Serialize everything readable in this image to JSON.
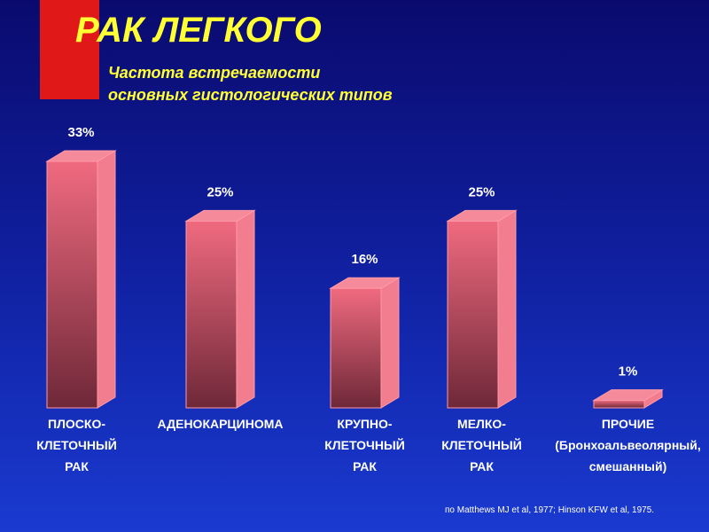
{
  "chart_data": {
    "type": "bar3d",
    "title": "РАК ЛЕГКОГО",
    "subtitle": [
      "Частота встречаемости",
      "основных гистологических типов"
    ],
    "categories": [
      "ПЛОСКО-\nКЛЕТОЧНЫЙ\nРАК",
      "АДЕНОКАРЦИНОМА",
      "КРУПНО-\nКЛЕТОЧНЫЙ\nРАК",
      "МЕЛКО-\nКЛЕТОЧНЫЙ\nРАК",
      "ПРОЧИЕ\n(Бронхоальвеолярный,\nсмешанный)"
    ],
    "values": [
      33,
      25,
      16,
      25,
      1
    ],
    "value_labels": [
      "33%",
      "25%",
      "16%",
      "25%",
      "1%"
    ],
    "color": "#f06a7f",
    "source": "по Matthews MJ et al,  1977; Hinson KFW et al, 1975."
  }
}
